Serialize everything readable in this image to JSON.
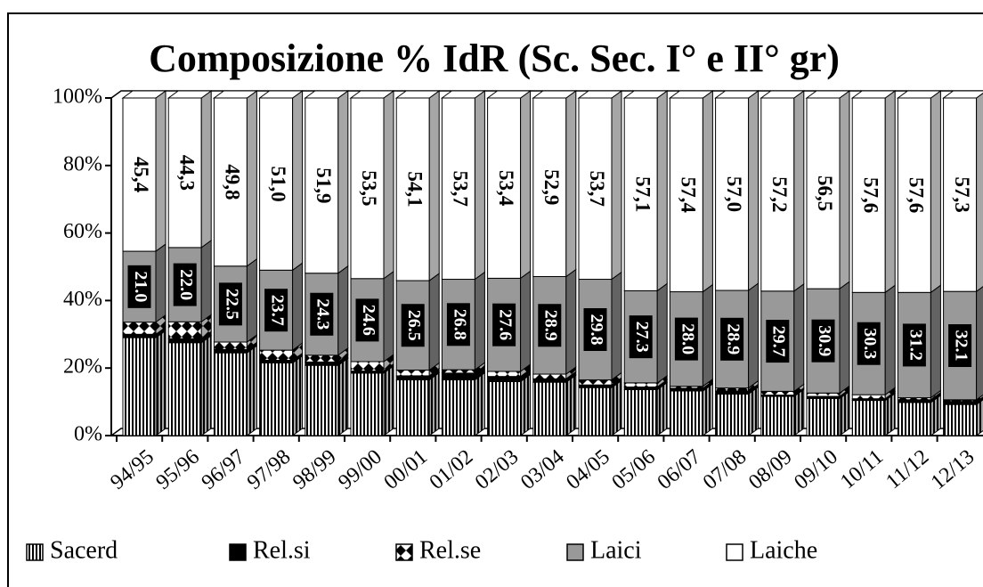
{
  "chart_data": {
    "type": "bar",
    "stacked": true,
    "title": "Composizione % IdR (Sc. Sec. I° e II° gr)",
    "categories": [
      "94/95",
      "95/96",
      "96/97",
      "97/98",
      "98/99",
      "99/00",
      "00/01",
      "01/02",
      "02/03",
      "03/04",
      "04/05",
      "05/06",
      "06/07",
      "07/08",
      "08/09",
      "09/10",
      "10/11",
      "11/12",
      "12/13"
    ],
    "series": [
      {
        "name": "Sacerd",
        "color": "#ffffff",
        "pattern": "vertical",
        "values": [
          29.0,
          27.5,
          24.5,
          21.5,
          20.8,
          18.5,
          16.5,
          16.5,
          16.0,
          15.8,
          14.2,
          13.6,
          13.2,
          12.3,
          11.6,
          11.0,
          10.4,
          9.8,
          9.2
        ]
      },
      {
        "name": "Rel.si",
        "color": "#000000",
        "pattern": "solid",
        "values": [
          1.0,
          1.2,
          1.0,
          0.8,
          1.0,
          0.6,
          1.2,
          2.0,
          1.5,
          1.0,
          0.8,
          0.8,
          0.8,
          0.8,
          0.4,
          0.6,
          0.5,
          0.8,
          0.8
        ]
      },
      {
        "name": "Rel.se",
        "color": "#ffffff",
        "pattern": "diamond",
        "values": [
          3.6,
          5.0,
          2.2,
          3.0,
          2.0,
          2.8,
          1.7,
          1.0,
          1.5,
          1.4,
          1.5,
          1.2,
          0.6,
          1.0,
          1.1,
          1.0,
          1.2,
          0.6,
          0.6
        ]
      },
      {
        "name": "Laici",
        "color": "#999999",
        "pattern": "solid",
        "values": [
          21.0,
          22.0,
          22.5,
          23.7,
          24.3,
          24.6,
          26.5,
          26.8,
          27.6,
          28.9,
          29.8,
          27.3,
          28.0,
          28.9,
          29.7,
          30.9,
          30.3,
          31.2,
          32.1
        ],
        "value_labels": [
          "21.0",
          "22.0",
          "22.5",
          "23.7",
          "24.3",
          "24.6",
          "26.5",
          "26.8",
          "27.6",
          "28.9",
          "29.8",
          "27.3",
          "28.0",
          "28.9",
          "29.7",
          "30.9",
          "30.3",
          "31.2",
          "32.1"
        ]
      },
      {
        "name": "Laiche",
        "color": "#ffffff",
        "pattern": "solid",
        "values": [
          45.4,
          44.3,
          49.8,
          51.0,
          51.9,
          53.5,
          54.1,
          53.7,
          53.4,
          52.9,
          53.7,
          57.1,
          57.4,
          57.0,
          57.2,
          56.5,
          57.6,
          57.6,
          57.3
        ],
        "value_labels": [
          "45,4",
          "44,3",
          "49,8",
          "51,0",
          "51,9",
          "53,5",
          "54,1",
          "53,7",
          "53,4",
          "52,9",
          "53,7",
          "57,1",
          "57,4",
          "57,0",
          "57,2",
          "56,5",
          "57,6",
          "57,6",
          "57,3"
        ]
      }
    ],
    "ylim": [
      0,
      100
    ],
    "yticks": [
      {
        "value": 0,
        "label": "0%"
      },
      {
        "value": 20,
        "label": "20%"
      },
      {
        "value": 40,
        "label": "40%"
      },
      {
        "value": 60,
        "label": "60%"
      },
      {
        "value": 80,
        "label": "80%"
      },
      {
        "value": 100,
        "label": "100%"
      }
    ],
    "legend": "bottom"
  }
}
